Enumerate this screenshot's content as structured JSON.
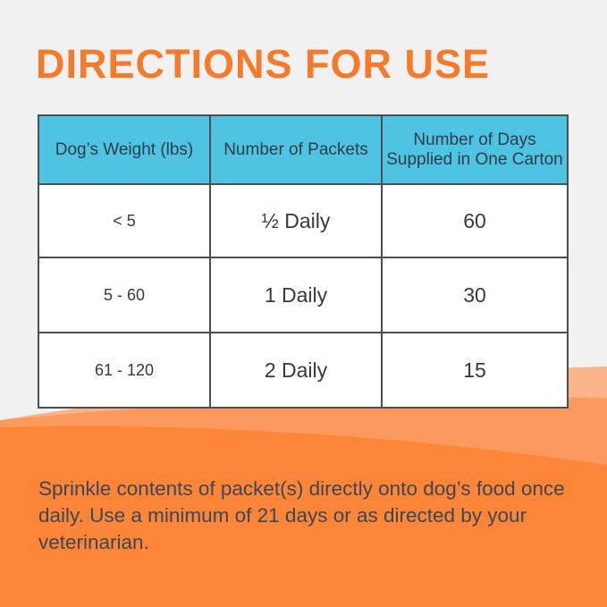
{
  "title": "DIRECTIONS FOR USE",
  "table": {
    "headers": [
      "Dog’s Weight (lbs)",
      "Number of Packets",
      "Number of Days Supplied in One Carton"
    ],
    "rows": [
      [
        "< 5",
        "½ Daily",
        "60"
      ],
      [
        "5 - 60",
        "1 Daily",
        "30"
      ],
      [
        "61 - 120",
        "2 Daily",
        "15"
      ]
    ]
  },
  "note": "Sprinkle contents of packet(s) directly onto dog’s food once daily. Use a minimum of 21 days or as directed by your veterinarian.",
  "colors": {
    "accent": "#f47a2c",
    "header": "#4ec3e2",
    "background": "#f1f1f1"
  }
}
